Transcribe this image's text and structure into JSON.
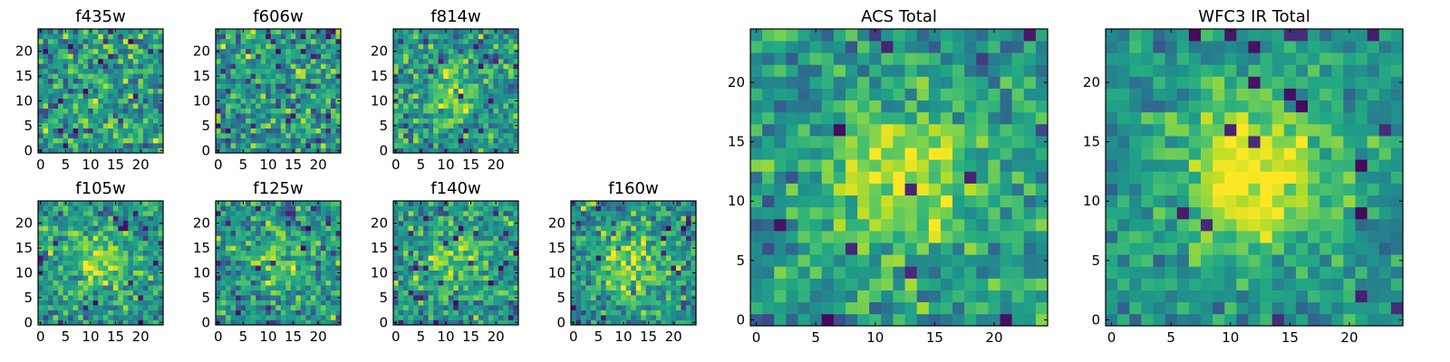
{
  "chart_data": [
    {
      "type": "heatmap",
      "title": "f435w",
      "size": 25,
      "xticks": [
        "0",
        "5",
        "10",
        "15",
        "20"
      ],
      "yticks": [
        "0",
        "5",
        "10",
        "15",
        "20"
      ],
      "peak": 0.1,
      "noise": 0.95,
      "seed": 11
    },
    {
      "type": "heatmap",
      "title": "f606w",
      "size": 25,
      "xticks": [
        "0",
        "5",
        "10",
        "15",
        "20"
      ],
      "yticks": [
        "0",
        "5",
        "10",
        "15",
        "20"
      ],
      "peak": 0.08,
      "noise": 0.95,
      "seed": 23
    },
    {
      "type": "heatmap",
      "title": "f814w",
      "size": 25,
      "xticks": [
        "0",
        "5",
        "10",
        "15",
        "20"
      ],
      "yticks": [
        "0",
        "5",
        "10",
        "15",
        "20"
      ],
      "peak": 0.45,
      "noise": 0.85,
      "seed": 37
    },
    {
      "type": "heatmap",
      "title": "f105w",
      "size": 25,
      "xticks": [
        "0",
        "5",
        "10",
        "15",
        "20"
      ],
      "yticks": [
        "0",
        "5",
        "10",
        "15",
        "20"
      ],
      "peak": 0.55,
      "noise": 0.75,
      "seed": 41
    },
    {
      "type": "heatmap",
      "title": "f125w",
      "size": 25,
      "xticks": [
        "0",
        "5",
        "10",
        "15",
        "20"
      ],
      "yticks": [
        "0",
        "5",
        "10",
        "15",
        "20"
      ],
      "peak": 0.35,
      "noise": 0.85,
      "seed": 53
    },
    {
      "type": "heatmap",
      "title": "f140w",
      "size": 25,
      "xticks": [
        "0",
        "5",
        "10",
        "15",
        "20"
      ],
      "yticks": [
        "0",
        "5",
        "10",
        "15",
        "20"
      ],
      "peak": 0.45,
      "noise": 0.8,
      "seed": 67
    },
    {
      "type": "heatmap",
      "title": "f160w",
      "size": 25,
      "xticks": [
        "0",
        "5",
        "10",
        "15",
        "20"
      ],
      "yticks": [
        "0",
        "5",
        "10",
        "15",
        "20"
      ],
      "peak": 0.55,
      "noise": 0.8,
      "seed": 79
    },
    {
      "type": "heatmap",
      "title": "ACS Total",
      "size": 25,
      "xticks": [
        "0",
        "5",
        "10",
        "15",
        "20"
      ],
      "yticks": [
        "0",
        "5",
        "10",
        "15",
        "20"
      ],
      "peak": 0.7,
      "noise": 0.7,
      "seed": 97
    },
    {
      "type": "heatmap",
      "title": "WFC3 IR Total",
      "size": 25,
      "xticks": [
        "0",
        "5",
        "10",
        "15",
        "20"
      ],
      "yticks": [
        "0",
        "5",
        "10",
        "15",
        "20"
      ],
      "peak": 0.85,
      "noise": 0.55,
      "seed": 131
    }
  ],
  "colormap": "viridis"
}
